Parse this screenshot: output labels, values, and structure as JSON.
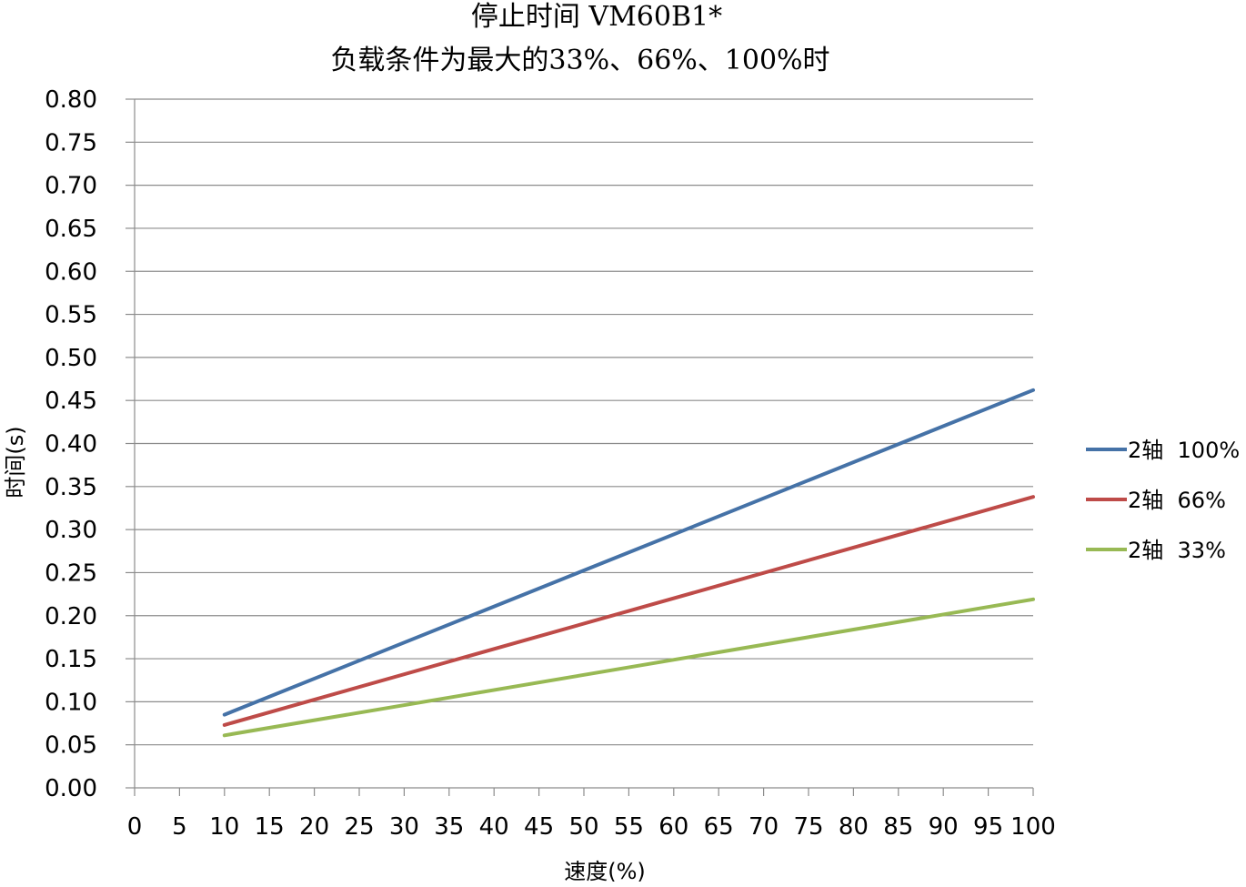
{
  "chart_data": {
    "type": "line",
    "title_lines": [
      "停止时间 VM60B1*",
      "负载条件为最大的33%、66%、100%时"
    ],
    "xlabel": "速度(%)",
    "ylabel": "时间(s)",
    "xlim": [
      0,
      100
    ],
    "ylim": [
      0,
      0.8
    ],
    "x_ticks": [
      0,
      5,
      10,
      15,
      20,
      25,
      30,
      35,
      40,
      45,
      50,
      55,
      60,
      65,
      70,
      75,
      80,
      85,
      90,
      95,
      100
    ],
    "y_ticks": [
      "0.00",
      "0.05",
      "0.10",
      "0.15",
      "0.20",
      "0.25",
      "0.30",
      "0.35",
      "0.40",
      "0.45",
      "0.50",
      "0.55",
      "0.60",
      "0.65",
      "0.70",
      "0.75",
      "0.80"
    ],
    "grid": "horizontal",
    "legend_position": "right",
    "series": [
      {
        "name": "2轴  100%",
        "color": "#4572A7",
        "x": [
          10,
          100
        ],
        "values": [
          0.085,
          0.462
        ]
      },
      {
        "name": "2轴  66%",
        "color": "#BE4B48",
        "x": [
          10,
          100
        ],
        "values": [
          0.073,
          0.338
        ]
      },
      {
        "name": "2轴  33%",
        "color": "#98B954",
        "x": [
          10,
          100
        ],
        "values": [
          0.061,
          0.219
        ]
      }
    ]
  }
}
